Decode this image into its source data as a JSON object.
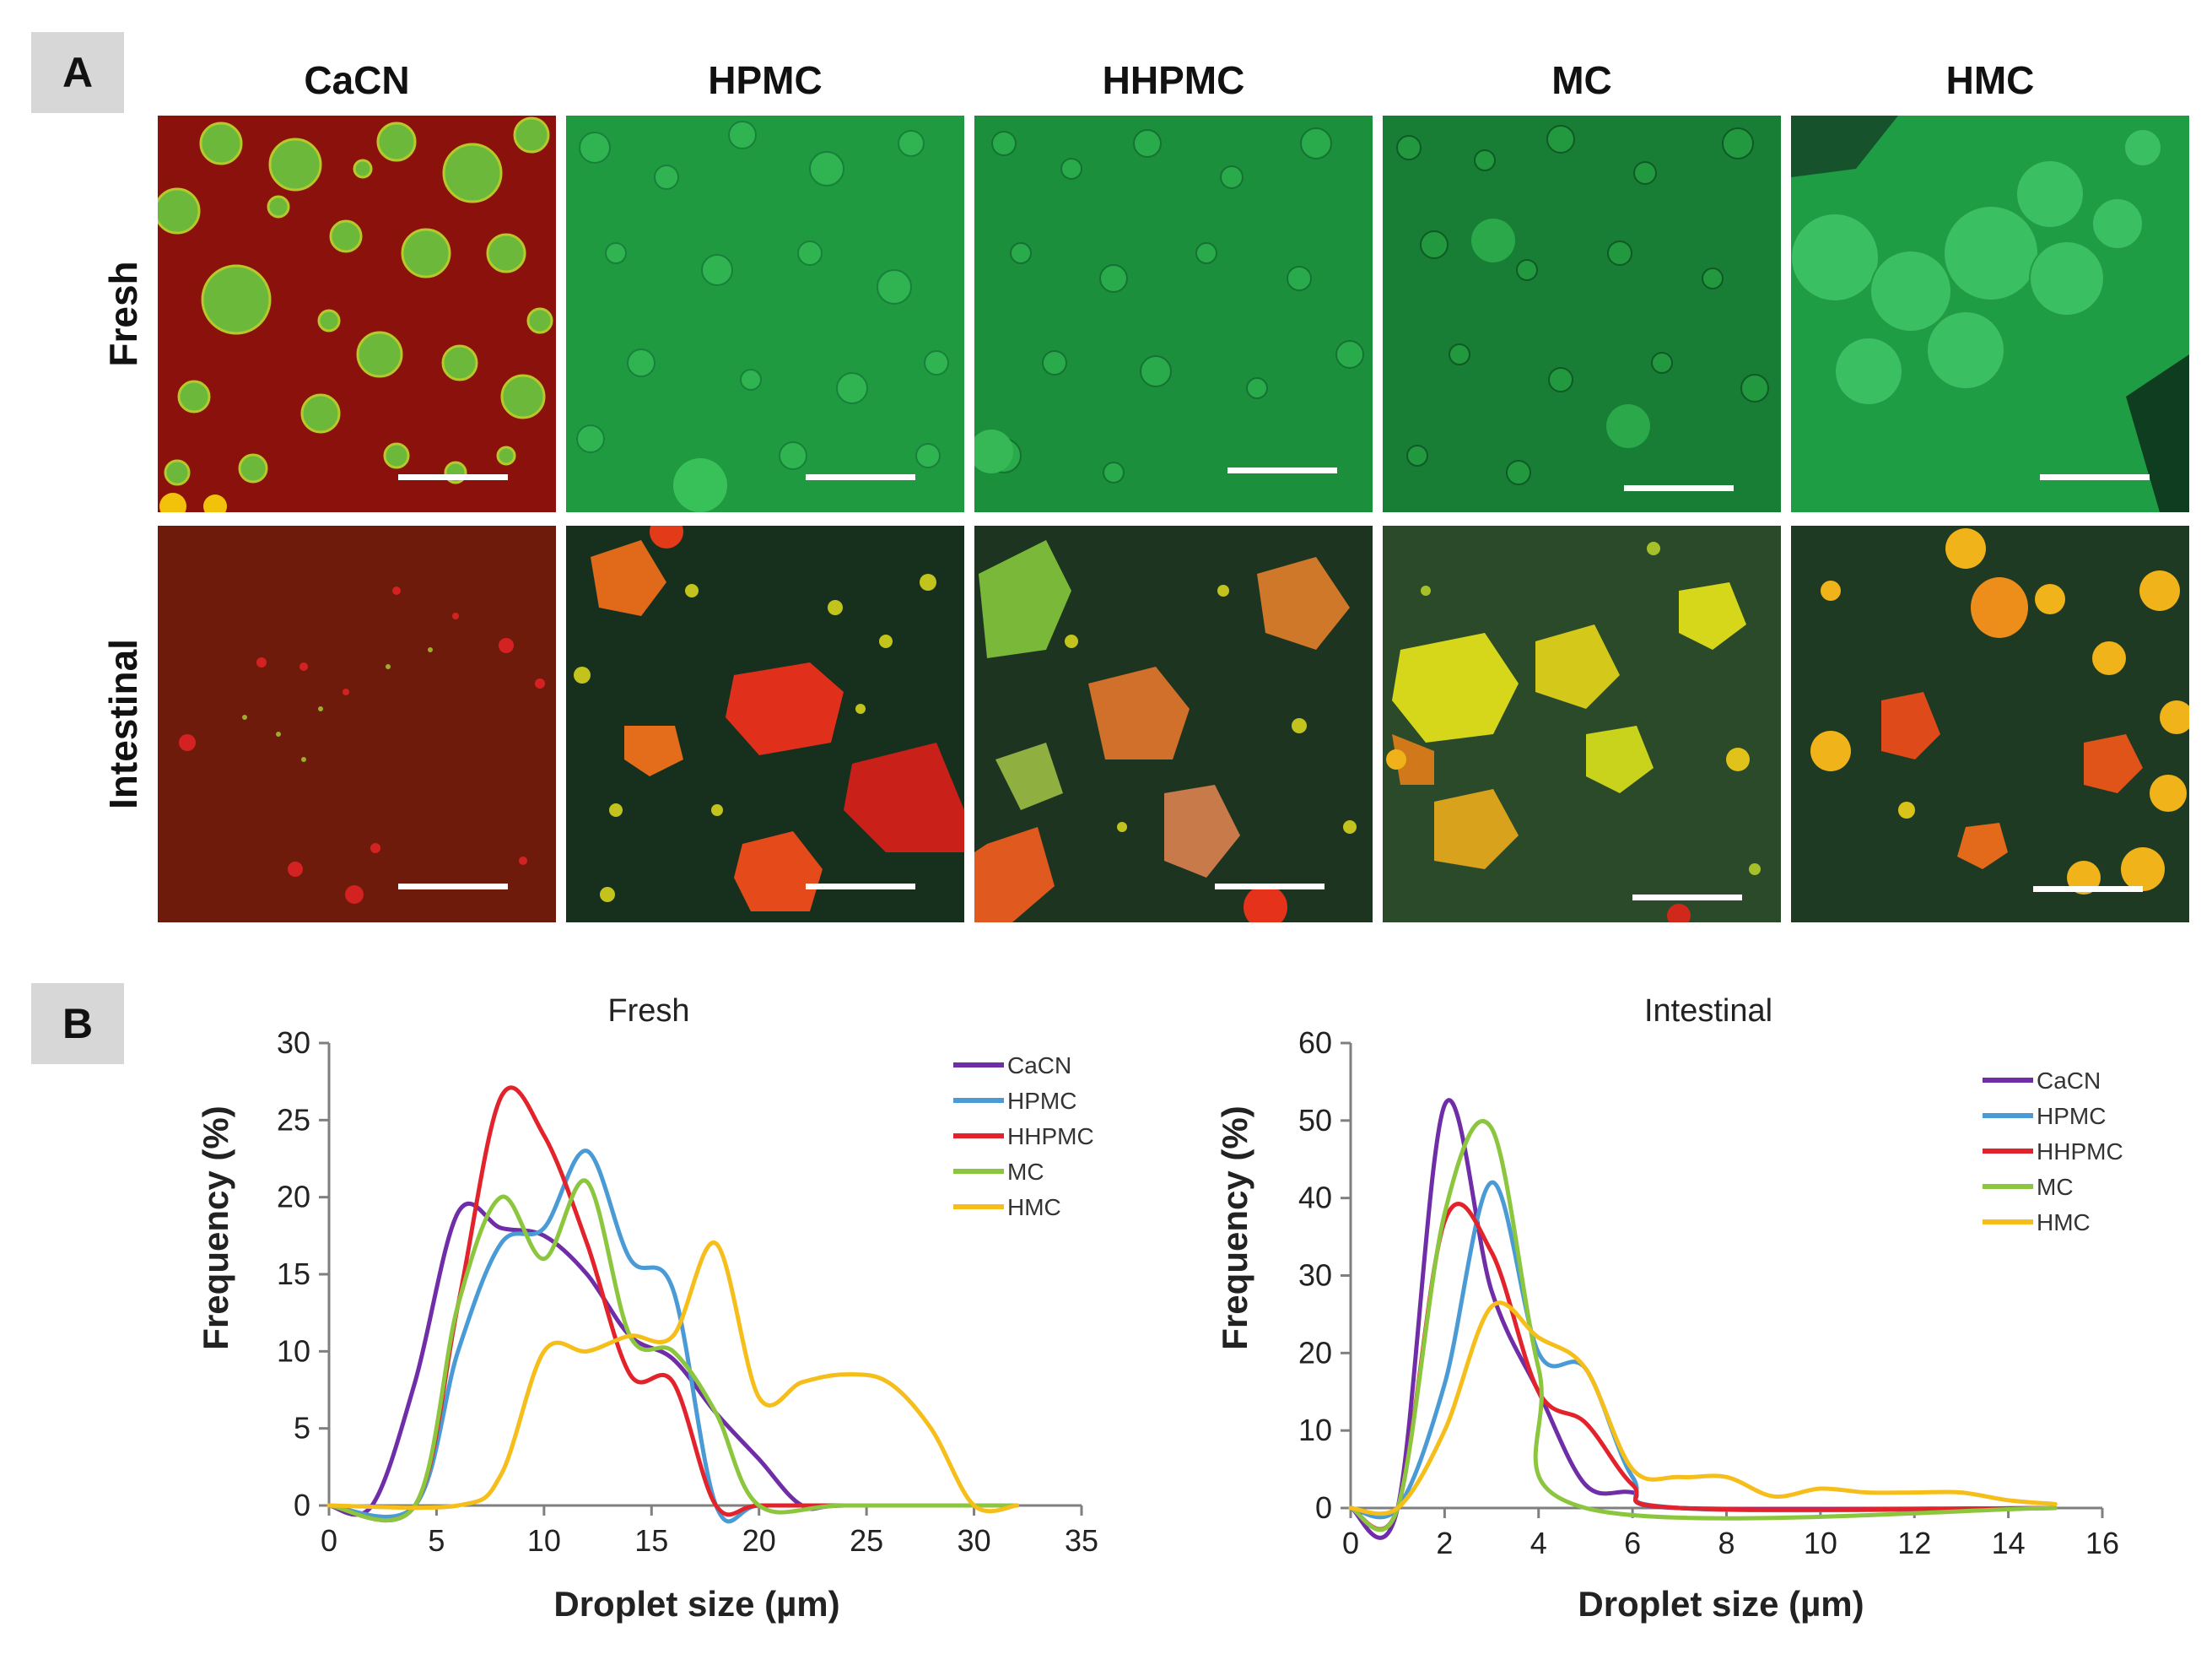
{
  "panel_a": {
    "label": "A",
    "columns": [
      "CaCN",
      "HPMC",
      "HHPMC",
      "MC",
      "HMC"
    ],
    "rows": [
      "Fresh",
      "Intestinal"
    ],
    "image_description": "Confocal micrographs of emulsions: fresh (top row) and after intestinal digestion (bottom row); each image has a white scale bar"
  },
  "panel_b_label": "B",
  "colors": {
    "CaCN": "#6f2da8",
    "HPMC": "#4a9bd5",
    "HHPMC": "#e3232c",
    "MC": "#8cc63e",
    "HMC": "#f6be1a",
    "micrograph_red": "#8b120c",
    "micrograph_green": "#1f9a40",
    "micrograph_dark": "#16301d"
  },
  "chart_data": [
    {
      "type": "line",
      "title": "Fresh",
      "xlabel": "Droplet size (µm)",
      "ylabel": "Frequency (%)",
      "xlim": [
        0,
        35
      ],
      "ylim": [
        0,
        30
      ],
      "xticks": [
        0,
        5,
        10,
        15,
        20,
        25,
        30,
        35
      ],
      "yticks": [
        0,
        5,
        10,
        15,
        20,
        25,
        30
      ],
      "legend": "top-right",
      "grid": false,
      "series": [
        {
          "name": "CaCN",
          "x": [
            0,
            2,
            4,
            6,
            8,
            10,
            12,
            14,
            16,
            18,
            20,
            22,
            24,
            32
          ],
          "y": [
            0,
            0,
            8,
            19,
            18,
            17.5,
            15,
            11,
            9.5,
            6,
            3,
            0,
            0,
            0
          ]
        },
        {
          "name": "HPMC",
          "x": [
            0,
            4,
            6,
            8,
            10,
            12,
            14,
            16,
            18,
            20,
            24,
            32
          ],
          "y": [
            0,
            0,
            10,
            17,
            18,
            23,
            16,
            14,
            0,
            0,
            0,
            0
          ]
        },
        {
          "name": "HHPMC",
          "x": [
            0,
            4,
            6,
            8,
            10,
            12,
            14,
            16,
            18,
            20,
            24,
            32
          ],
          "y": [
            0,
            0,
            13,
            26.5,
            24,
            17,
            8.5,
            8,
            0,
            0,
            0,
            0
          ]
        },
        {
          "name": "MC",
          "x": [
            0,
            4,
            6,
            8,
            10,
            12,
            14,
            16,
            18,
            20,
            24,
            32
          ],
          "y": [
            0,
            0,
            13,
            20,
            16,
            21,
            11,
            10,
            6,
            0,
            0,
            0
          ]
        },
        {
          "name": "HMC",
          "x": [
            0,
            6,
            8,
            10,
            12,
            14,
            16,
            18,
            20,
            22,
            24,
            26,
            28,
            30,
            32
          ],
          "y": [
            0,
            0,
            2,
            10,
            10,
            11,
            11,
            17,
            7,
            8,
            8.5,
            8,
            5,
            0,
            0
          ]
        }
      ]
    },
    {
      "type": "line",
      "title": "Intestinal",
      "xlabel": "Droplet size (µm)",
      "ylabel": "Frequency (%)",
      "xlim": [
        0,
        16
      ],
      "ylim": [
        0,
        60
      ],
      "xticks": [
        0,
        2,
        4,
        6,
        8,
        10,
        12,
        14,
        16
      ],
      "yticks": [
        0,
        10,
        20,
        30,
        40,
        50,
        60
      ],
      "legend": "top-right",
      "grid": false,
      "series": [
        {
          "name": "CaCN",
          "x": [
            0,
            1,
            2,
            3,
            4,
            5,
            6,
            7,
            15
          ],
          "y": [
            0,
            0,
            52,
            28,
            15,
            3,
            2,
            0,
            0
          ]
        },
        {
          "name": "HPMC",
          "x": [
            0,
            1,
            2,
            3,
            4,
            5,
            6,
            7,
            15
          ],
          "y": [
            0,
            0,
            16,
            42,
            20,
            18,
            4,
            0,
            0
          ]
        },
        {
          "name": "HHPMC",
          "x": [
            0,
            1,
            2,
            3,
            4,
            5,
            6,
            7,
            15
          ],
          "y": [
            0,
            0,
            37,
            33,
            15,
            11,
            3,
            0,
            0
          ]
        },
        {
          "name": "MC",
          "x": [
            0,
            1,
            2,
            3,
            4,
            5,
            15
          ],
          "y": [
            0,
            0,
            38,
            49,
            18,
            0,
            0
          ]
        },
        {
          "name": "HMC",
          "x": [
            0,
            1,
            2,
            3,
            4,
            5,
            6,
            7,
            8,
            9,
            10,
            11,
            12,
            13,
            14,
            15
          ],
          "y": [
            0,
            0,
            10,
            26,
            22,
            18,
            5,
            4,
            4,
            1.5,
            2.5,
            2,
            2,
            2,
            1,
            0.5
          ]
        }
      ]
    }
  ]
}
